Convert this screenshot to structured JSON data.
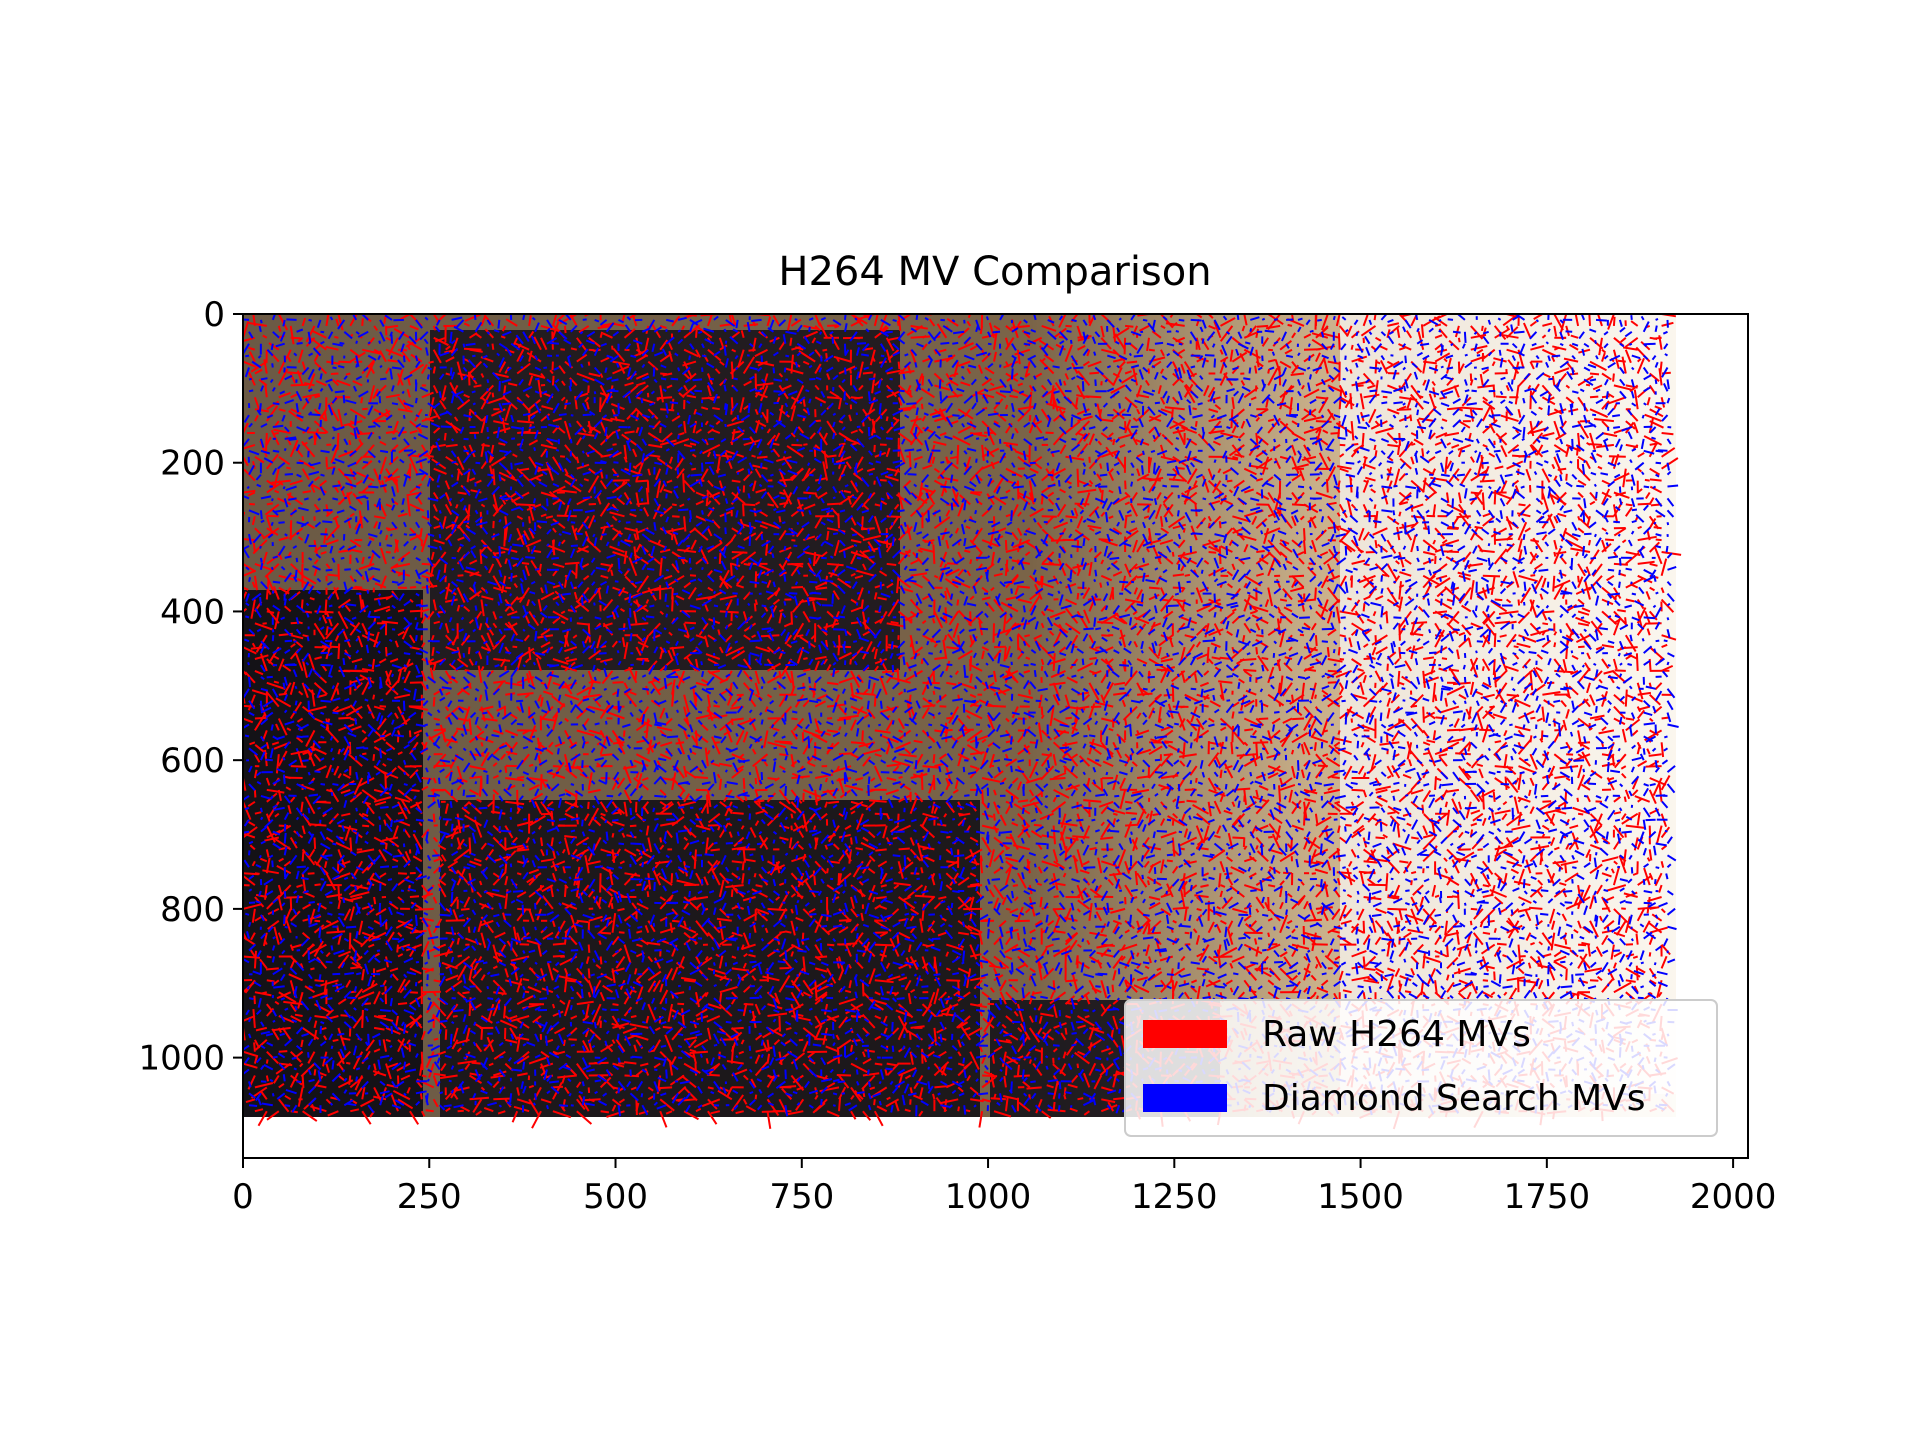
{
  "chart_data": {
    "type": "quiver",
    "title": "H264 MV Comparison",
    "xlabel": "",
    "ylabel": "",
    "xlim": [
      0,
      2020
    ],
    "ylim": [
      1135,
      0
    ],
    "y_inverted": true,
    "grid": false,
    "x_ticks": [
      0,
      250,
      500,
      750,
      1000,
      1250,
      1500,
      1750,
      2000
    ],
    "x_tick_labels": [
      "0",
      "250",
      "500",
      "750",
      "1000",
      "1250",
      "1500",
      "1750",
      "2000"
    ],
    "y_ticks": [
      0,
      200,
      400,
      600,
      800,
      1000
    ],
    "y_tick_labels": [
      "0",
      "200",
      "400",
      "600",
      "800",
      "1000"
    ],
    "background_image_extent": {
      "x": [
        0,
        1920
      ],
      "y": [
        0,
        1080
      ]
    },
    "legend": {
      "position": "lower-right",
      "entries": [
        {
          "label": "Raw H264 MVs",
          "color": "#ff0000"
        },
        {
          "label": "Diamond Search MVs",
          "color": "#0000ff"
        }
      ]
    },
    "series": [
      {
        "name": "Raw H264 MVs",
        "color": "#ff0000",
        "kind": "motion-vector field"
      },
      {
        "name": "Diamond Search MVs",
        "color": "#0000ff",
        "kind": "motion-vector field"
      }
    ]
  }
}
